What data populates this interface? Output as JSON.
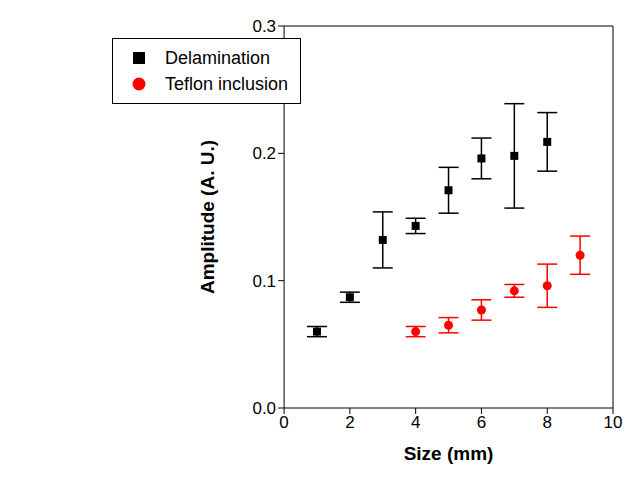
{
  "chart_data": {
    "type": "scatter",
    "x_label": "Size (mm)",
    "y_label": "Amplitude (A. U.)",
    "xlim": [
      0,
      10
    ],
    "xticks": [
      0,
      2,
      4,
      6,
      8,
      10
    ],
    "ylim": [
      0,
      0.3
    ],
    "yticks": [
      {
        "value": 0,
        "label": "0.0"
      },
      0.1,
      0.2,
      0.3
    ],
    "legend": "upper left",
    "grid": false,
    "series": [
      {
        "name": "Delamination",
        "color": "#000000",
        "marker": "square",
        "x": [
          1,
          2,
          3,
          4,
          5,
          6,
          7,
          8
        ],
        "values": [
          0.06,
          0.087,
          0.132,
          0.143,
          0.171,
          0.196,
          0.198,
          0.209
        ],
        "errors": [
          0.004,
          0.004,
          0.022,
          0.006,
          0.018,
          0.016,
          0.041,
          0.023
        ]
      },
      {
        "name": "Teflon inclusion",
        "color": "#ff0000",
        "marker": "circle",
        "x": [
          4,
          5,
          6,
          7,
          8,
          9
        ],
        "values": [
          0.06,
          0.065,
          0.077,
          0.092,
          0.096,
          0.12
        ],
        "errors": [
          0.004,
          0.006,
          0.008,
          0.005,
          0.017,
          0.015
        ]
      }
    ]
  }
}
